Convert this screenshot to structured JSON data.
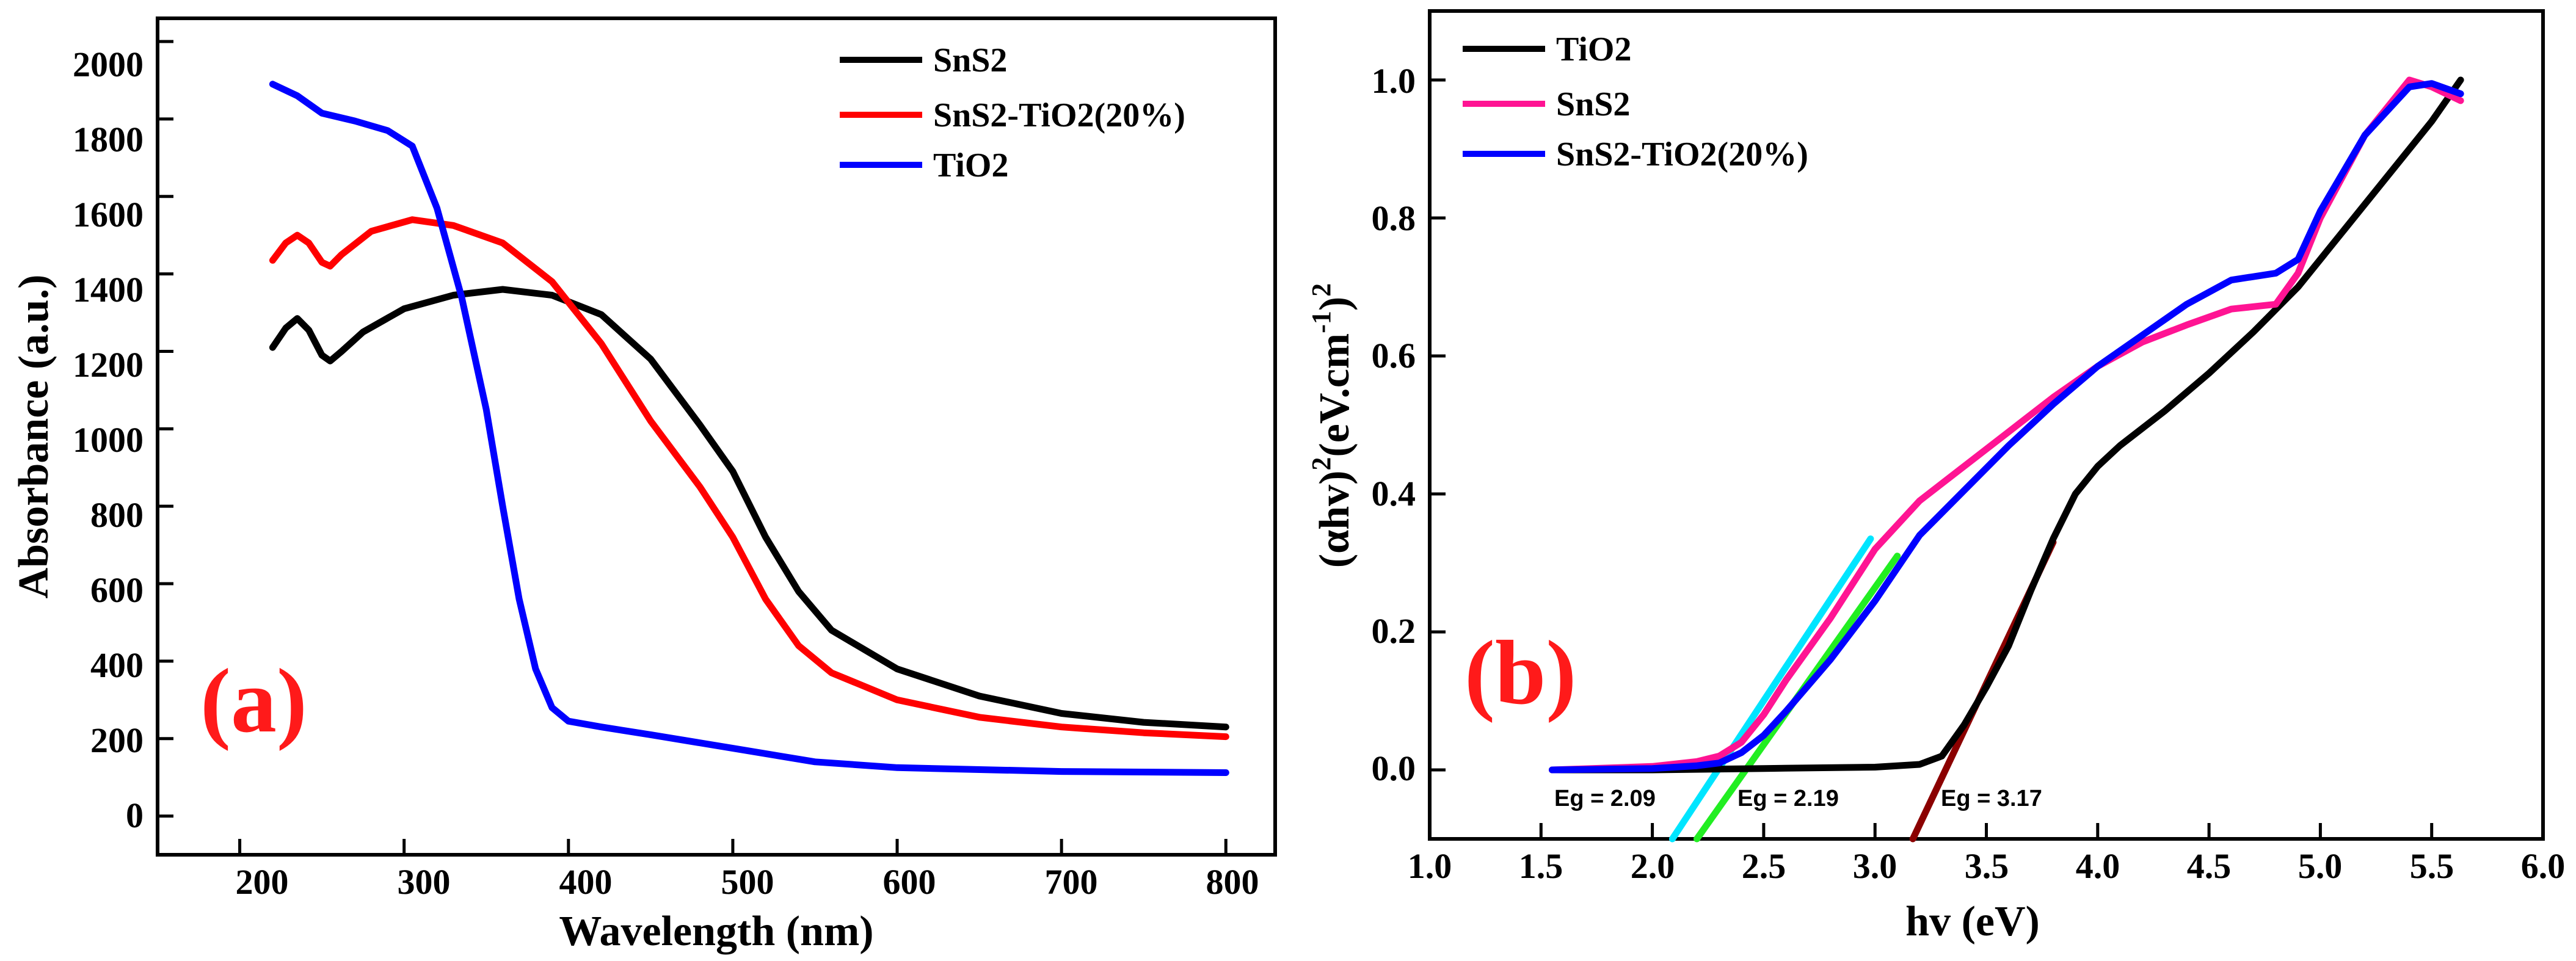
{
  "chart_data": [
    {
      "panel": "a",
      "type": "line",
      "panel_label": "(a)",
      "xlabel": "Wavelength (nm)",
      "ylabel": "Absorbance (a.u.)",
      "xlim": [
        150,
        830
      ],
      "ylim": [
        -100,
        2060
      ],
      "xticks": [
        200,
        300,
        400,
        500,
        600,
        700,
        800
      ],
      "yticks": [
        0,
        200,
        400,
        600,
        800,
        1000,
        1200,
        1400,
        1600,
        1800,
        2000
      ],
      "legend_position": "top-right",
      "series": [
        {
          "name": "SnS2",
          "color": "#000000",
          "points": [
            [
              220,
              1210
            ],
            [
              228,
              1260
            ],
            [
              235,
              1285
            ],
            [
              242,
              1255
            ],
            [
              250,
              1190
            ],
            [
              255,
              1175
            ],
            [
              262,
              1200
            ],
            [
              275,
              1250
            ],
            [
              300,
              1310
            ],
            [
              330,
              1345
            ],
            [
              360,
              1360
            ],
            [
              390,
              1345
            ],
            [
              420,
              1295
            ],
            [
              450,
              1180
            ],
            [
              480,
              1010
            ],
            [
              500,
              890
            ],
            [
              520,
              720
            ],
            [
              540,
              580
            ],
            [
              560,
              480
            ],
            [
              600,
              380
            ],
            [
              650,
              310
            ],
            [
              700,
              265
            ],
            [
              750,
              242
            ],
            [
              800,
              230
            ]
          ]
        },
        {
          "name": "SnS2-TiO2(20%)",
          "color": "#ff0000",
          "points": [
            [
              220,
              1435
            ],
            [
              228,
              1480
            ],
            [
              235,
              1500
            ],
            [
              242,
              1480
            ],
            [
              250,
              1430
            ],
            [
              255,
              1420
            ],
            [
              262,
              1450
            ],
            [
              280,
              1510
            ],
            [
              305,
              1540
            ],
            [
              330,
              1525
            ],
            [
              360,
              1480
            ],
            [
              390,
              1380
            ],
            [
              420,
              1220
            ],
            [
              450,
              1020
            ],
            [
              480,
              850
            ],
            [
              500,
              720
            ],
            [
              520,
              560
            ],
            [
              540,
              440
            ],
            [
              560,
              370
            ],
            [
              600,
              300
            ],
            [
              650,
              255
            ],
            [
              700,
              230
            ],
            [
              750,
              215
            ],
            [
              800,
              205
            ]
          ]
        },
        {
          "name": "TiO2",
          "color": "#0000ff",
          "points": [
            [
              220,
              1890
            ],
            [
              235,
              1860
            ],
            [
              250,
              1815
            ],
            [
              270,
              1795
            ],
            [
              290,
              1770
            ],
            [
              305,
              1730
            ],
            [
              320,
              1570
            ],
            [
              335,
              1340
            ],
            [
              350,
              1050
            ],
            [
              360,
              800
            ],
            [
              370,
              560
            ],
            [
              380,
              380
            ],
            [
              390,
              280
            ],
            [
              400,
              245
            ],
            [
              420,
              230
            ],
            [
              450,
              210
            ],
            [
              500,
              175
            ],
            [
              550,
              140
            ],
            [
              600,
              125
            ],
            [
              700,
              115
            ],
            [
              800,
              112
            ]
          ]
        }
      ]
    },
    {
      "panel": "b",
      "type": "line",
      "panel_label": "(b)",
      "xlabel": "hv (eV)",
      "ylabel_main": "(αhv)",
      "ylabel_sup1": "2",
      "ylabel_mid": "(eV.cm",
      "ylabel_sup2": "-1",
      "ylabel_end": ")",
      "ylabel_sup3": "2",
      "xlim": [
        1.0,
        6.0
      ],
      "ylim": [
        -0.1,
        1.1
      ],
      "xticks": [
        "1.0",
        "1.5",
        "2.0",
        "2.5",
        "3.0",
        "3.5",
        "4.0",
        "4.5",
        "5.0",
        "5.5",
        "6.0"
      ],
      "yticks": [
        "0.0",
        "0.2",
        "0.4",
        "0.6",
        "0.8",
        "1.0"
      ],
      "legend_position": "top-left",
      "series": [
        {
          "name": "TiO2",
          "color": "#000000",
          "points": [
            [
              1.55,
              0
            ],
            [
              2.0,
              0
            ],
            [
              2.5,
              0.002
            ],
            [
              3.0,
              0.004
            ],
            [
              3.2,
              0.008
            ],
            [
              3.3,
              0.02
            ],
            [
              3.4,
              0.065
            ],
            [
              3.5,
              0.12
            ],
            [
              3.6,
              0.18
            ],
            [
              3.7,
              0.26
            ],
            [
              3.8,
              0.335
            ],
            [
              3.9,
              0.4
            ],
            [
              4.0,
              0.44
            ],
            [
              4.1,
              0.47
            ],
            [
              4.3,
              0.52
            ],
            [
              4.5,
              0.575
            ],
            [
              4.7,
              0.635
            ],
            [
              4.9,
              0.7
            ],
            [
              5.1,
              0.78
            ],
            [
              5.3,
              0.86
            ],
            [
              5.5,
              0.94
            ],
            [
              5.63,
              1.0
            ]
          ]
        },
        {
          "name": "SnS2",
          "color": "#ff1493",
          "points": [
            [
              1.55,
              0
            ],
            [
              2.0,
              0.005
            ],
            [
              2.2,
              0.012
            ],
            [
              2.3,
              0.02
            ],
            [
              2.4,
              0.04
            ],
            [
              2.5,
              0.08
            ],
            [
              2.6,
              0.13
            ],
            [
              2.8,
              0.22
            ],
            [
              3.0,
              0.32
            ],
            [
              3.2,
              0.39
            ],
            [
              3.4,
              0.44
            ],
            [
              3.6,
              0.49
            ],
            [
              3.8,
              0.54
            ],
            [
              4.0,
              0.585
            ],
            [
              4.2,
              0.62
            ],
            [
              4.4,
              0.645
            ],
            [
              4.6,
              0.668
            ],
            [
              4.8,
              0.675
            ],
            [
              4.9,
              0.72
            ],
            [
              5.0,
              0.8
            ],
            [
              5.2,
              0.92
            ],
            [
              5.4,
              1.0
            ],
            [
              5.5,
              0.99
            ],
            [
              5.63,
              0.97
            ]
          ]
        },
        {
          "name": "SnS2-TiO2(20%)",
          "color": "#0000ff",
          "points": [
            [
              1.55,
              0
            ],
            [
              2.0,
              0.002
            ],
            [
              2.2,
              0.006
            ],
            [
              2.3,
              0.01
            ],
            [
              2.4,
              0.025
            ],
            [
              2.5,
              0.05
            ],
            [
              2.6,
              0.085
            ],
            [
              2.8,
              0.16
            ],
            [
              3.0,
              0.245
            ],
            [
              3.2,
              0.34
            ],
            [
              3.4,
              0.405
            ],
            [
              3.6,
              0.47
            ],
            [
              3.8,
              0.53
            ],
            [
              4.0,
              0.585
            ],
            [
              4.2,
              0.63
            ],
            [
              4.4,
              0.675
            ],
            [
              4.6,
              0.71
            ],
            [
              4.8,
              0.72
            ],
            [
              4.9,
              0.74
            ],
            [
              5.0,
              0.81
            ],
            [
              5.2,
              0.92
            ],
            [
              5.4,
              0.99
            ],
            [
              5.5,
              0.995
            ],
            [
              5.63,
              0.98
            ]
          ]
        }
      ],
      "fits": [
        {
          "color": "#00e5ff",
          "points": [
            [
              2.09,
              -0.1
            ],
            [
              2.98,
              0.335
            ]
          ]
        },
        {
          "color": "#22ee22",
          "points": [
            [
              2.2,
              -0.1
            ],
            [
              3.1,
              0.31
            ]
          ]
        },
        {
          "color": "#8b0000",
          "points": [
            [
              3.17,
              -0.1
            ],
            [
              3.8,
              0.33
            ]
          ]
        }
      ],
      "annotations": [
        {
          "text": "Eg = 2.09",
          "x": 2.09,
          "y": -0.05
        },
        {
          "text": "Eg = 2.19",
          "x": 2.19,
          "y": -0.05
        },
        {
          "text": "Eg = 3.17",
          "x": 3.17,
          "y": -0.05
        }
      ]
    }
  ]
}
